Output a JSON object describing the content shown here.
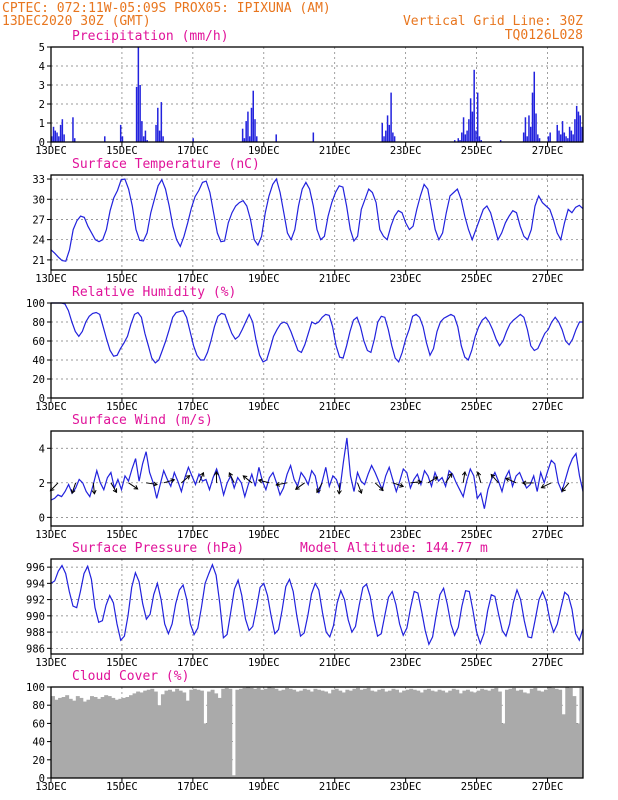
{
  "header": {
    "line1": "CPTEC:   072:11W-05:09S   PROX05: IPIXUNA (AM)",
    "line2_left": "13DEC2020 30Z (GMT)",
    "line2_right": "Vertical Grid Line: 30Z",
    "line3_right": "TQ0126L028"
  },
  "x_ticks": [
    "13DEC",
    "15DEC",
    "17DEC",
    "19DEC",
    "21DEC",
    "23DEC",
    "25DEC",
    "27DEC"
  ],
  "colors": {
    "header": "#e8761f",
    "panel_title": "#e0139a",
    "series": "#2222dd",
    "cloud": "#aaaaaa",
    "arrow": "#000000"
  },
  "chart_data": [
    {
      "id": "precip",
      "type": "bar",
      "title": "Precipitation (mm/h)",
      "ylim": [
        0,
        5
      ],
      "yticks": [
        0,
        1,
        2,
        3,
        4,
        5
      ],
      "x_range_days": [
        0,
        15
      ],
      "values": [
        0.3,
        0.8,
        0.6,
        0.5,
        0.3,
        0.9,
        1.2,
        0.4,
        0,
        0,
        0,
        0,
        1.3,
        0.2,
        0,
        0,
        0,
        0,
        0,
        0,
        0,
        0,
        0,
        0,
        0,
        0,
        0,
        0,
        0,
        0,
        0.3,
        0,
        0,
        0,
        0,
        0,
        0,
        0,
        0,
        0.9,
        0.3,
        0,
        0,
        0,
        0,
        0,
        0,
        0,
        2.9,
        5.0,
        3.0,
        1.1,
        0.3,
        0.6,
        0.1,
        0,
        0,
        0,
        0,
        0.9,
        1.8,
        0.6,
        2.1,
        0.3,
        0,
        0,
        0,
        0,
        0,
        0,
        0,
        0,
        0,
        0,
        0,
        0,
        0,
        0,
        0,
        0,
        0.2,
        0,
        0,
        0,
        0,
        0,
        0,
        0,
        0,
        0,
        0,
        0,
        0,
        0,
        0,
        0,
        0,
        0,
        0,
        0,
        0,
        0,
        0,
        0,
        0,
        0,
        0,
        0,
        0.7,
        0.2,
        1.1,
        1.6,
        0.3,
        1.8,
        2.7,
        1.2,
        0.3,
        0,
        0,
        0,
        0,
        0,
        0,
        0,
        0,
        0,
        0,
        0.4,
        0,
        0,
        0,
        0,
        0,
        0,
        0,
        0,
        0,
        0,
        0,
        0,
        0,
        0,
        0,
        0,
        0,
        0,
        0,
        0,
        0.5,
        0,
        0,
        0,
        0,
        0,
        0,
        0,
        0,
        0,
        0,
        0,
        0,
        0,
        0,
        0,
        0,
        0,
        0,
        0,
        0,
        0,
        0,
        0,
        0,
        0,
        0,
        0,
        0,
        0,
        0,
        0,
        0,
        0,
        0,
        0,
        0,
        0,
        0,
        1.0,
        0.3,
        0.6,
        1.4,
        0.9,
        2.6,
        0.5,
        0.3,
        0,
        0,
        0,
        0,
        0,
        0,
        0,
        0,
        0,
        0,
        0,
        0,
        0,
        0,
        0,
        0,
        0,
        0,
        0,
        0,
        0,
        0,
        0,
        0,
        0,
        0,
        0,
        0,
        0,
        0,
        0,
        0,
        0,
        0.1,
        0,
        0.2,
        0.1,
        0.5,
        1.3,
        0.4,
        0.6,
        1.2,
        2.3,
        1.6,
        3.8,
        0.6,
        2.6,
        0.3,
        0.1,
        0,
        0,
        0,
        0,
        0,
        0,
        0,
        0,
        0,
        0,
        0.1,
        0,
        0,
        0,
        0,
        0,
        0,
        0,
        0,
        0,
        0,
        0,
        0,
        0.5,
        1.3,
        0.3,
        1.4,
        0.8,
        2.6,
        3.7,
        1.5,
        0.4,
        0.2,
        0,
        0,
        0,
        0,
        0.3,
        0.5,
        0,
        0,
        0,
        0.9,
        0.6,
        0.4,
        1.1,
        0.5,
        0.3,
        0.2,
        0.8,
        0.6,
        0.4,
        1.2,
        1.9,
        1.6,
        1.4,
        0.8
      ]
    },
    {
      "id": "temp",
      "type": "line",
      "title": "Surface Temperature (nC)",
      "ylim": [
        19.5,
        33.6
      ],
      "yticks": [
        21,
        24,
        27,
        30,
        33
      ],
      "x_range_days": [
        0,
        15
      ],
      "values": [
        22.5,
        22.0,
        21.4,
        20.9,
        20.8,
        22.5,
        25.5,
        26.8,
        27.5,
        27.3,
        26.0,
        25.0,
        24.0,
        23.7,
        24.0,
        25.5,
        28.3,
        30.2,
        31.3,
        32.9,
        33.0,
        31.5,
        29.0,
        25.5,
        23.9,
        23.8,
        25.0,
        28.0,
        30.0,
        32.0,
        32.9,
        31.5,
        29.0,
        26.0,
        24.0,
        23.0,
        24.5,
        26.5,
        28.7,
        30.4,
        31.3,
        32.5,
        32.7,
        31.0,
        28.0,
        25.0,
        23.7,
        23.8,
        26.5,
        28.0,
        29.0,
        29.5,
        29.8,
        29.0,
        27.0,
        24.0,
        23.2,
        24.5,
        28.0,
        30.5,
        32.2,
        33.0,
        31.0,
        28.0,
        25.0,
        24.0,
        25.5,
        29.0,
        31.5,
        32.5,
        31.5,
        29.0,
        25.5,
        24.0,
        24.5,
        27.5,
        29.5,
        31.0,
        32.0,
        31.8,
        29.0,
        25.5,
        23.8,
        24.5,
        28.5,
        30.0,
        31.5,
        31.0,
        29.5,
        25.5,
        24.5,
        24.0,
        26.0,
        27.5,
        28.3,
        28.0,
        26.5,
        25.5,
        26.0,
        28.5,
        30.5,
        32.2,
        31.5,
        28.5,
        25.5,
        24.0,
        25.0,
        28.0,
        30.5,
        31.0,
        31.5,
        30.0,
        27.5,
        25.5,
        24.0,
        25.5,
        27.0,
        28.5,
        29.0,
        28.0,
        26.0,
        24.0,
        25.0,
        26.5,
        27.5,
        28.3,
        28.0,
        26.0,
        24.5,
        24.0,
        25.5,
        29.0,
        30.5,
        29.5,
        29.0,
        28.5,
        27.0,
        25.0,
        24.0,
        26.5,
        28.5,
        28.0,
        28.8,
        29.1,
        28.6
      ]
    },
    {
      "id": "rh",
      "type": "line",
      "title": "Relative Humidity (%)",
      "ylim": [
        0,
        100
      ],
      "yticks": [
        0,
        20,
        40,
        60,
        80,
        100
      ],
      "x_range_days": [
        0,
        15
      ],
      "values": [
        100,
        100,
        100,
        100,
        99,
        92,
        80,
        70,
        65,
        70,
        80,
        86,
        89,
        90,
        88,
        75,
        62,
        50,
        44,
        45,
        52,
        58,
        65,
        78,
        88,
        90,
        85,
        68,
        55,
        42,
        37,
        40,
        50,
        60,
        72,
        85,
        90,
        91,
        92,
        85,
        70,
        55,
        45,
        40,
        40,
        48,
        60,
        75,
        86,
        89,
        88,
        78,
        68,
        62,
        65,
        72,
        80,
        88,
        80,
        60,
        45,
        38,
        40,
        52,
        65,
        72,
        78,
        80,
        78,
        70,
        60,
        50,
        48,
        56,
        68,
        80,
        78,
        80,
        85,
        88,
        87,
        75,
        55,
        43,
        42,
        55,
        70,
        82,
        85,
        75,
        60,
        50,
        48,
        62,
        80,
        86,
        85,
        72,
        55,
        42,
        38,
        48,
        62,
        72,
        86,
        88,
        85,
        75,
        58,
        45,
        52,
        70,
        80,
        84,
        86,
        88,
        86,
        75,
        55,
        43,
        40,
        50,
        65,
        75,
        82,
        85,
        80,
        72,
        62,
        55,
        60,
        70,
        78,
        82,
        85,
        88,
        85,
        72,
        55,
        50,
        52,
        60,
        68,
        72,
        80,
        85,
        80,
        72,
        60,
        56,
        62,
        72,
        80,
        80
      ]
    },
    {
      "id": "wind",
      "type": "line",
      "title": "Surface Wind (m/s)",
      "ylim": [
        -0.5,
        5.0
      ],
      "yticks": [
        0,
        2,
        4
      ],
      "x_range_days": [
        0,
        15
      ],
      "values": [
        1.0,
        1.1,
        1.3,
        1.2,
        1.5,
        1.9,
        1.4,
        1.7,
        2.2,
        2.0,
        1.5,
        1.2,
        1.9,
        2.7,
        2.0,
        1.6,
        2.3,
        2.6,
        1.7,
        2.2,
        1.6,
        2.4,
        2.1,
        2.8,
        3.4,
        2.1,
        3.1,
        3.8,
        2.6,
        2.0,
        1.1,
        1.9,
        2.7,
        2.2,
        1.8,
        2.6,
        2.1,
        1.5,
        2.3,
        2.9,
        2.4,
        1.9,
        2.5,
        2.1,
        2.2,
        1.6,
        2.3,
        2.8,
        2.2,
        1.3,
        2.0,
        2.4,
        1.7,
        2.3,
        2.0,
        1.2,
        1.9,
        2.5,
        1.8,
        2.9,
        2.1,
        1.6,
        2.3,
        2.6,
        2.0,
        1.3,
        1.7,
        2.5,
        3.0,
        2.2,
        1.8,
        2.6,
        2.3,
        1.9,
        2.7,
        2.4,
        1.4,
        2.1,
        2.9,
        1.8,
        2.4,
        2.2,
        1.6,
        3.2,
        4.6,
        2.4,
        1.5,
        2.6,
        2.1,
        1.9,
        2.5,
        3.0,
        2.6,
        2.1,
        1.6,
        2.4,
        2.9,
        2.2,
        1.5,
        2.1,
        2.8,
        2.6,
        1.7,
        2.2,
        2.5,
        1.9,
        2.7,
        2.4,
        1.8,
        2.6,
        2.1,
        2.3,
        1.8,
        2.7,
        2.5,
        2.0,
        1.6,
        1.2,
        2.1,
        2.8,
        2.4,
        1.1,
        1.4,
        0.5,
        1.6,
        2.2,
        2.6,
        2.1,
        1.5,
        2.3,
        2.7,
        1.8,
        2.4,
        2.6,
        2.1,
        1.7,
        1.9,
        2.4,
        1.5,
        2.6,
        2.0,
        2.7,
        3.3,
        3.1,
        2.0,
        1.5,
        2.2,
        2.9,
        3.4,
        3.7,
        2.4,
        1.5
      ]
    },
    {
      "id": "pressure",
      "type": "line",
      "title": "Surface Pressure (hPa)",
      "annotation": "Model Altitude: 144.77 m",
      "ylim": [
        985.3,
        997.0
      ],
      "yticks": [
        986,
        988,
        990,
        992,
        994,
        996
      ],
      "x_range_days": [
        0,
        15
      ],
      "values": [
        994.0,
        994.3,
        995.5,
        996.2,
        995.2,
        993.0,
        991.2,
        991.0,
        993.0,
        995.2,
        996.1,
        994.5,
        991.0,
        989.2,
        989.4,
        991.3,
        992.5,
        991.6,
        989.0,
        987.0,
        987.5,
        990.0,
        993.5,
        995.3,
        994.2,
        991.5,
        989.6,
        990.2,
        992.6,
        994.0,
        992.0,
        989.0,
        987.8,
        989.0,
        991.5,
        993.2,
        993.8,
        992.0,
        989.0,
        987.7,
        988.5,
        991.0,
        994.0,
        995.2,
        996.3,
        995.0,
        991.5,
        987.3,
        987.7,
        990.5,
        993.3,
        994.4,
        992.5,
        989.6,
        988.2,
        988.7,
        991.0,
        993.5,
        994.0,
        992.5,
        990.0,
        987.8,
        988.3,
        990.7,
        993.6,
        994.5,
        993.0,
        990.0,
        987.5,
        987.9,
        990.0,
        992.7,
        994.0,
        993.2,
        990.4,
        988.0,
        987.4,
        988.8,
        991.6,
        993.1,
        992.0,
        989.5,
        988.0,
        988.7,
        991.3,
        993.5,
        993.9,
        992.4,
        989.6,
        987.5,
        987.8,
        990.1,
        992.3,
        993.0,
        991.4,
        989.0,
        987.6,
        988.5,
        991.0,
        993.0,
        992.8,
        990.6,
        988.2,
        986.5,
        987.4,
        990.1,
        992.6,
        993.4,
        991.5,
        989.0,
        987.6,
        988.6,
        991.2,
        993.1,
        993.0,
        990.7,
        988.0,
        986.6,
        987.8,
        990.6,
        992.6,
        992.4,
        990.2,
        988.2,
        987.5,
        989.0,
        991.6,
        993.2,
        992.0,
        989.4,
        987.4,
        987.3,
        989.6,
        992.0,
        993.0,
        991.8,
        989.4,
        988.0,
        989.0,
        991.0,
        992.9,
        992.5,
        990.8,
        987.8,
        987.0,
        988.4
      ]
    },
    {
      "id": "cloud",
      "type": "area",
      "title": "Cloud Cover (%)",
      "ylim": [
        0,
        100
      ],
      "yticks": [
        0,
        20,
        40,
        60,
        80,
        100
      ],
      "x_range_days": [
        0,
        15
      ],
      "values": [
        90,
        86,
        88,
        89,
        91,
        87,
        85,
        90,
        88,
        84,
        86,
        90,
        89,
        87,
        89,
        91,
        90,
        88,
        86,
        87,
        88,
        89,
        91,
        93,
        95,
        94,
        96,
        97,
        98,
        95,
        80,
        92,
        96,
        97,
        95,
        98,
        96,
        94,
        85,
        97,
        98,
        97,
        96,
        60,
        95,
        97,
        93,
        88,
        98,
        99,
        98,
        3,
        97,
        98,
        99,
        100,
        99,
        98,
        99,
        97,
        98,
        100,
        99,
        98,
        96,
        97,
        99,
        98,
        97,
        95,
        96,
        98,
        97,
        95,
        98,
        97,
        96,
        95,
        93,
        97,
        98,
        96,
        94,
        97,
        96,
        98,
        99,
        97,
        98,
        99,
        96,
        95,
        97,
        98,
        95,
        96,
        98,
        97,
        94,
        96,
        97,
        98,
        97,
        96,
        94,
        97,
        98,
        96,
        95,
        97,
        96,
        94,
        96,
        98,
        97,
        93,
        96,
        97,
        95,
        94,
        96,
        98,
        97,
        96,
        98,
        99,
        95,
        60,
        97,
        98,
        99,
        96,
        97,
        94,
        93,
        98,
        99,
        96,
        95,
        97,
        100,
        99,
        98,
        97,
        70,
        100,
        99,
        90,
        60,
        99
      ]
    }
  ]
}
